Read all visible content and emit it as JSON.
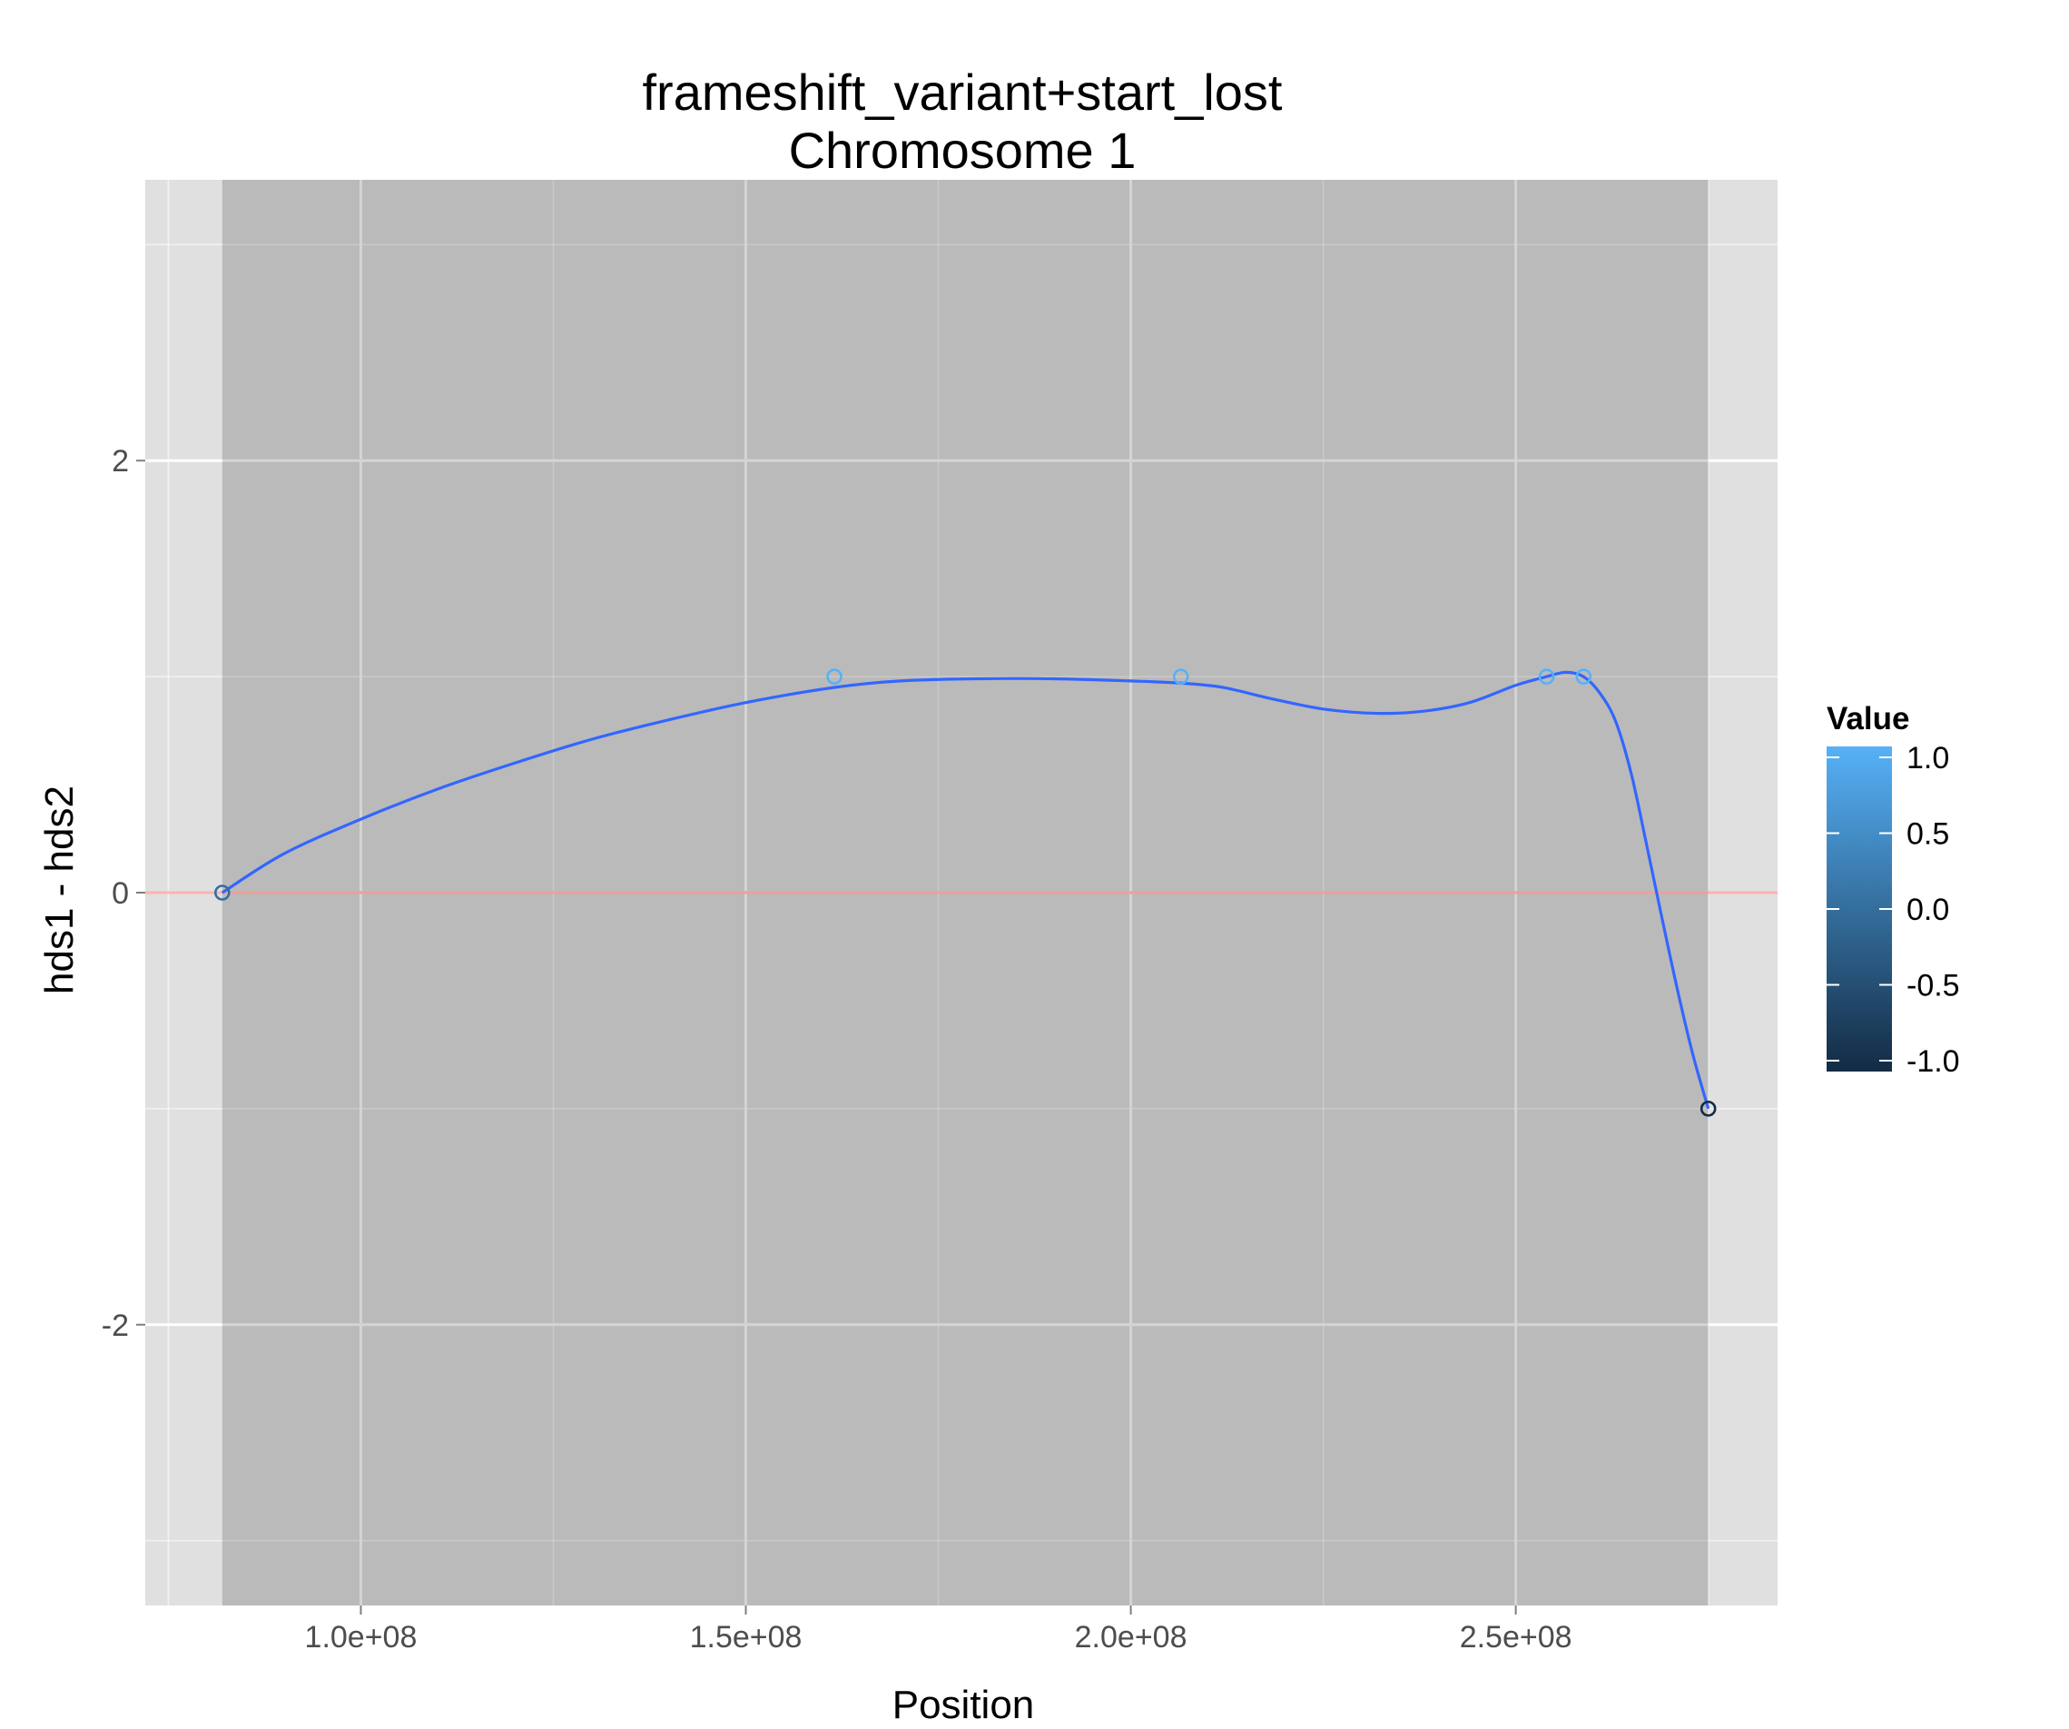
{
  "chart_data": {
    "type": "line",
    "title": "frameshift_variant+start_lost",
    "subtitle": "Chromosome 1",
    "xlabel": "Position",
    "ylabel": "hds1 - hds2",
    "xlim": [
      72000000,
      284000000
    ],
    "ylim": [
      -3.3,
      3.3
    ],
    "x_ticks": [
      100000000,
      150000000,
      200000000,
      250000000
    ],
    "x_tick_labels": [
      "1.0e+08",
      "1.5e+08",
      "2.0e+08",
      "2.5e+08"
    ],
    "y_ticks": [
      -2,
      0,
      2
    ],
    "y_tick_labels": [
      "-2",
      "0",
      "2"
    ],
    "grid": true,
    "shaded_region": [
      82000000,
      275000000
    ],
    "reference_line": {
      "y": 0,
      "color": "#f8766d"
    },
    "points": [
      {
        "x": 82000000,
        "y": 0,
        "value": 0
      },
      {
        "x": 161500000,
        "y": 1,
        "value": 1
      },
      {
        "x": 206500000,
        "y": 1,
        "value": 1
      },
      {
        "x": 254000000,
        "y": 1,
        "value": 1
      },
      {
        "x": 258800000,
        "y": 1,
        "value": 1
      },
      {
        "x": 275000000,
        "y": -1,
        "value": -1
      }
    ],
    "smooth_line": {
      "color": "#3366ff",
      "x": [
        82000000,
        90000000,
        100000000,
        110000000,
        120000000,
        130000000,
        140000000,
        150000000,
        161500000,
        170000000,
        180000000,
        190000000,
        200000000,
        206500000,
        212000000,
        218000000,
        225000000,
        232000000,
        238000000,
        244000000,
        250000000,
        254000000,
        256500000,
        258800000,
        261000000,
        263000000,
        265000000,
        267000000,
        269000000,
        271000000,
        273000000,
        275000000
      ],
      "y": [
        0,
        0.18,
        0.34,
        0.48,
        0.6,
        0.71,
        0.8,
        0.88,
        0.95,
        0.98,
        0.99,
        0.99,
        0.98,
        0.97,
        0.95,
        0.9,
        0.85,
        0.83,
        0.84,
        0.88,
        0.96,
        1.0,
        1.02,
        1.0,
        0.92,
        0.79,
        0.55,
        0.22,
        -0.12,
        -0.45,
        -0.75,
        -1.0
      ]
    },
    "legend": {
      "title": "Value",
      "position": "right",
      "labels": [
        "1.0",
        "0.5",
        "0.0",
        "-0.5",
        "-1.0"
      ],
      "values": [
        1.0,
        0.5,
        0.0,
        -0.5,
        -1.0
      ],
      "color_low": "#132b43",
      "color_high": "#56b1f7"
    },
    "colors": {
      "panel_background": "#e0e0e0",
      "shade": "#b9b9b9",
      "grid_major": "#ffffff",
      "text": "#4d4d4d"
    }
  }
}
